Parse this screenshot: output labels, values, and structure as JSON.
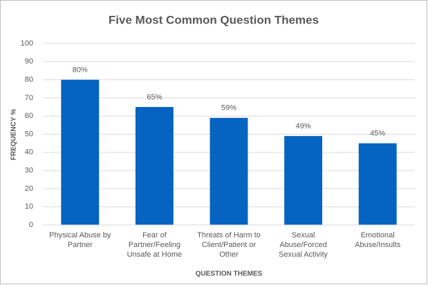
{
  "chart_data": {
    "type": "bar",
    "title": "Five Most Common Question Themes",
    "x_label": "QUESTION THEMES",
    "y_label": "FREQUENCY %",
    "categories": [
      "Physical Abuse by Partner",
      "Fear of Partner/Feeling Unsafe at Home",
      "Threats of Harm to Client/Patient or Other",
      "Sexual Abuse/Forced Sexual Activity",
      "Emotional Abuse/Insults"
    ],
    "values": [
      80,
      65,
      59,
      49,
      45
    ],
    "value_labels": [
      "80%",
      "65%",
      "59%",
      "49%",
      "45%"
    ],
    "color": "#0563c1",
    "ylim": [
      0,
      100
    ],
    "yticks": [
      0,
      10,
      20,
      30,
      40,
      50,
      60,
      70,
      80,
      90,
      100
    ],
    "grid": true
  }
}
